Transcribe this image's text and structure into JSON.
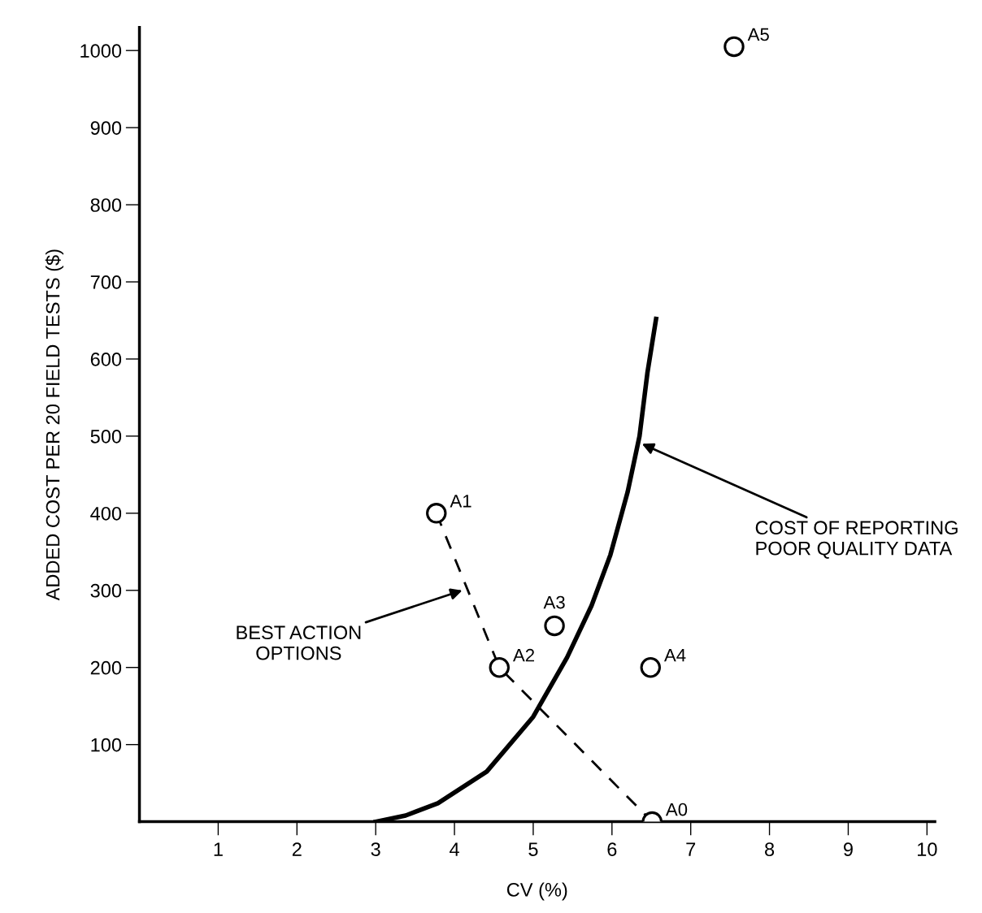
{
  "chart_data": {
    "type": "scatter",
    "xlabel": "CV (%)",
    "ylabel": "ADDED COST PER 20 FIELD TESTS ($)",
    "xlim": [
      0,
      10.1
    ],
    "ylim": [
      0,
      1030
    ],
    "xticks": [
      1,
      2,
      3,
      4,
      5,
      6,
      7,
      8,
      9,
      10
    ],
    "yticks": [
      100,
      200,
      300,
      400,
      500,
      600,
      700,
      800,
      900,
      1000
    ],
    "grid": false,
    "legend": false,
    "series": [
      {
        "color": "#000000",
        "marker": "circle",
        "x": [
          6.51,
          3.77,
          4.57,
          5.27,
          6.49,
          7.55
        ],
        "values": [
          0,
          400,
          200,
          254,
          200,
          1005
        ],
        "value_labels": [
          "A0",
          "A1",
          "A2",
          "A3",
          "A4",
          "A5"
        ]
      },
      {
        "type": "line",
        "color": "#000000",
        "line_style": "dashed",
        "marker": "none",
        "x": [
          3.77,
          4.57,
          6.51
        ],
        "values": [
          400,
          200,
          0
        ]
      },
      {
        "type": "line",
        "color": "#000000",
        "line_style": "solid",
        "marker": "none",
        "x": [
          3.0,
          3.38,
          3.79,
          4.41,
          5.0,
          5.43,
          5.74,
          5.98,
          6.2,
          6.35,
          6.45,
          6.56
        ],
        "values": [
          0,
          8,
          24,
          65,
          136,
          213,
          280,
          346,
          428,
          500,
          582,
          652
        ]
      }
    ],
    "annotations": [
      {
        "text": "COST OF REPORTING\nPOOR QUALITY DATA",
        "x": 6.38,
        "y": 490
      },
      {
        "text": "BEST ACTION\nOPTIONS",
        "x": 4.1,
        "y": 300
      }
    ]
  }
}
